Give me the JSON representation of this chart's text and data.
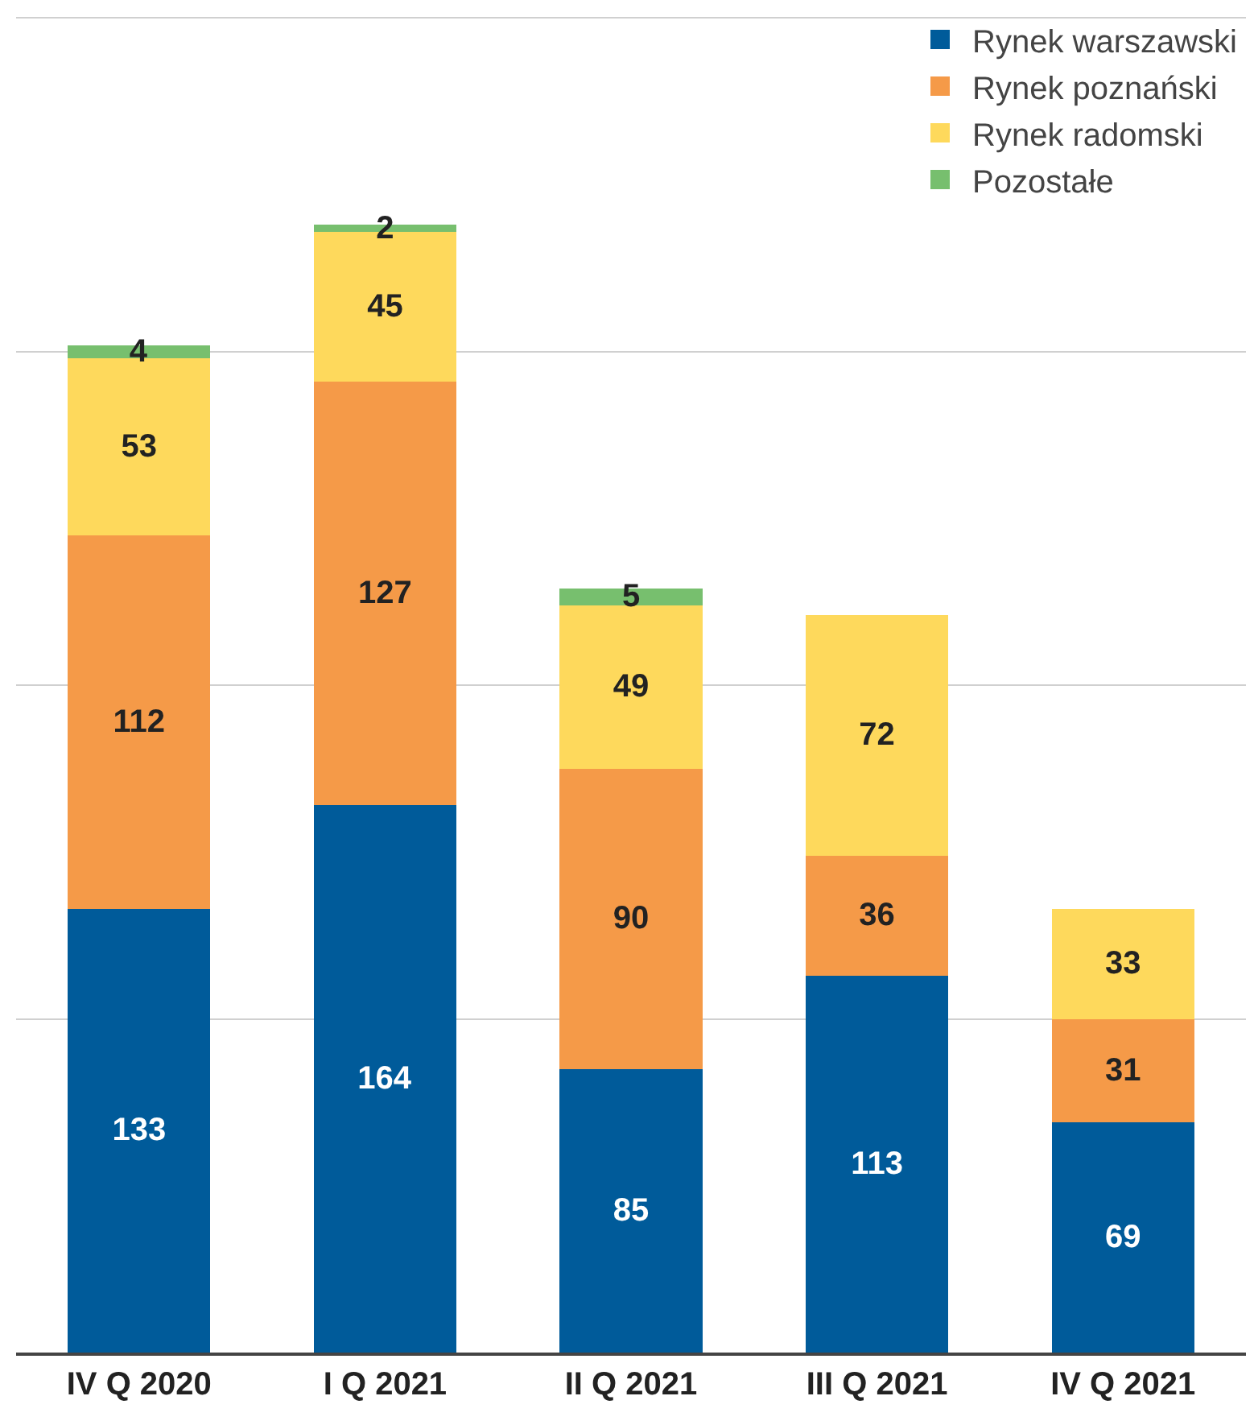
{
  "chart_data": {
    "type": "bar",
    "stacked": true,
    "categories": [
      "IV Q 2020",
      "I Q 2021",
      "II Q 2021",
      "III Q 2021",
      "IV Q 2021"
    ],
    "series": [
      {
        "name": "Rynek warszawski",
        "color": "#005b9a",
        "values": [
          133,
          164,
          85,
          113,
          69
        ]
      },
      {
        "name": "Rynek poznański",
        "color": "#f59a48",
        "values": [
          112,
          127,
          90,
          36,
          31
        ]
      },
      {
        "name": "Rynek radomski",
        "color": "#fed95c",
        "values": [
          53,
          45,
          49,
          72,
          33
        ]
      },
      {
        "name": "Pozostałe",
        "color": "#77bf6e",
        "values": [
          4,
          2,
          5,
          null,
          null
        ]
      }
    ],
    "ylim": [
      0,
      403
    ],
    "yticks": [
      {
        "value": 0,
        "label": null
      },
      {
        "value": 100,
        "label": null
      },
      {
        "value": 200,
        "label": null
      },
      {
        "value": 300,
        "label": null
      },
      {
        "value": 400,
        "label": null
      }
    ],
    "tick_labels": "x",
    "grid": "y",
    "legend": "top right",
    "data_labels": true
  }
}
